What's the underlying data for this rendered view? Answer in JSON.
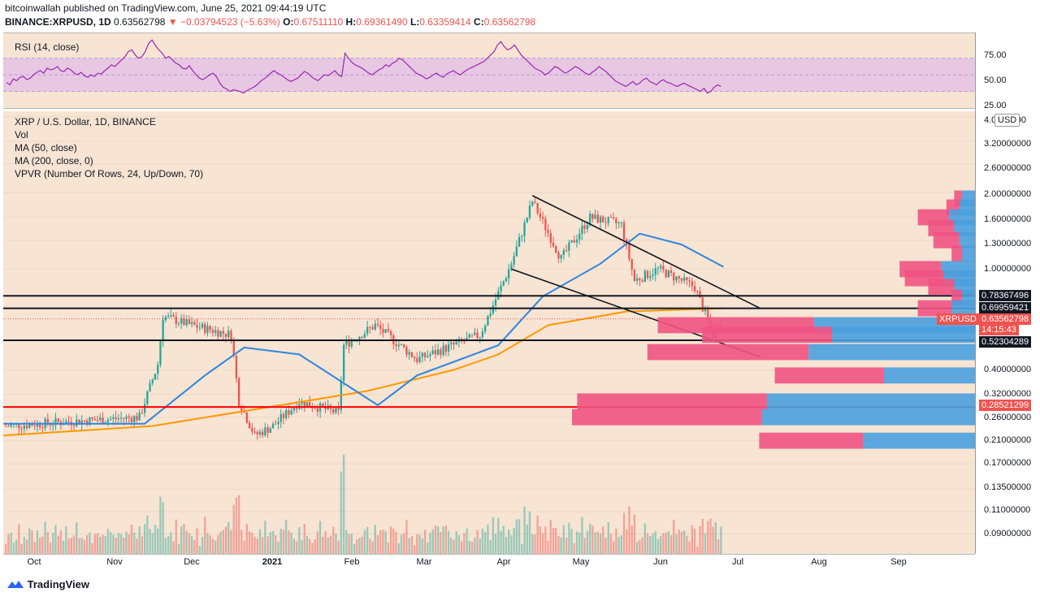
{
  "header": {
    "publisher": "bitcoinwallah published on TradingView.com, June 25, 2021 09:44:19 UTC",
    "symbol": "BINANCE:XRPUSD, 1D",
    "last": "0.63562798",
    "arrow": "▼",
    "change": "−0.03794523 (−5.63%)",
    "o_label": "O:",
    "o": "0.67511110",
    "h_label": "H:",
    "h": "0.69361490",
    "l_label": "L:",
    "l": "0.63359414",
    "c_label": "C:",
    "c": "0.63562798"
  },
  "rsi": {
    "label": "RSI (14, close)",
    "ticks": [
      "75.00",
      "50.00",
      "25.00"
    ],
    "values": [
      41,
      38,
      45,
      43,
      47,
      48,
      44,
      46,
      50,
      53,
      55,
      52,
      58,
      56,
      57,
      60,
      55,
      54,
      58,
      56,
      52,
      50,
      53,
      49,
      47,
      50,
      48,
      52,
      51,
      55,
      58,
      62,
      60,
      64,
      68,
      72,
      78,
      80,
      74,
      70,
      72,
      78,
      88,
      92,
      85,
      80,
      76,
      70,
      72,
      68,
      64,
      62,
      58,
      57,
      61,
      55,
      50,
      46,
      44,
      47,
      50,
      52,
      48,
      40,
      35,
      33,
      30,
      32,
      31,
      30,
      28,
      31,
      33,
      35,
      38,
      42,
      45,
      48,
      52,
      55,
      52,
      50,
      47,
      44,
      42,
      44,
      46,
      50,
      54,
      52,
      48,
      45,
      43,
      47,
      50,
      49,
      52,
      55,
      50,
      48,
      76,
      70,
      65,
      62,
      60,
      58,
      55,
      52,
      50,
      53,
      56,
      58,
      62,
      60,
      64,
      66,
      70,
      68,
      64,
      60,
      56,
      52,
      50,
      48,
      45,
      47,
      50,
      52,
      49,
      47,
      51,
      53,
      55,
      52,
      50,
      53,
      56,
      58,
      60,
      62,
      64,
      66,
      70,
      74,
      78,
      86,
      90,
      84,
      80,
      82,
      86,
      80,
      74,
      70,
      66,
      62,
      58,
      56,
      54,
      50,
      52,
      56,
      60,
      58,
      55,
      52,
      54,
      57,
      60,
      58,
      55,
      52,
      50,
      53,
      56,
      60,
      57,
      54,
      50,
      46,
      42,
      40,
      38,
      36,
      39,
      42,
      38,
      40,
      44,
      46,
      42,
      40,
      38,
      42,
      44,
      41,
      40,
      38,
      36,
      38,
      40,
      38,
      36,
      34,
      32,
      30,
      34,
      28,
      30,
      35,
      38,
      36
    ],
    "zones": {
      "upper": 70,
      "mid": 50,
      "lower": 30
    }
  },
  "main": {
    "legend": [
      "XRP / U.S. Dollar, 1D, BINANCE",
      "Vol",
      "MA (50, close)",
      "MA (200, close, 0)",
      "VPVR (Number Of Rows, 24, Up/Down, 70)"
    ],
    "ticks": [
      "4.0000000",
      "3.20000000",
      "2.60000000",
      "2.00000000",
      "1.60000000",
      "1.30000000",
      "1.00000000",
      "0.40000000",
      "0.32000000",
      "0.26000000",
      "0.21000000",
      "0.17000000",
      "0.13500000",
      "0.11000000",
      "0.09000000"
    ],
    "currency": "USD",
    "price_labels": [
      {
        "text": "0.78367496",
        "bg": "#131722"
      },
      {
        "text": "0.69959421",
        "bg": "#131722"
      },
      {
        "text": "XRPUSD",
        "bg": "#ef5350"
      },
      {
        "text": "0.63562798",
        "bg": "#ef5350"
      },
      {
        "text": "14:15:43",
        "bg": "#ef5350"
      },
      {
        "text": "0.52304289",
        "bg": "#131722"
      },
      {
        "text": "0.28521299",
        "bg": "#ef5350"
      }
    ],
    "x_ticks": [
      "Oct",
      "Nov",
      "Dec",
      "2021",
      "Feb",
      "Mar",
      "Apr",
      "May",
      "Jun",
      "Jul",
      "Aug",
      "Sep"
    ]
  },
  "chart_data": {
    "type": "candlestick",
    "title": "XRP / U.S. Dollar, 1D, BINANCE",
    "yscale": "log",
    "ylim": [
      0.075,
      4.2
    ],
    "x_range": [
      "2020-09-24",
      "2021-09-30"
    ],
    "anchors": [
      {
        "date": "2020-09-25",
        "close": 0.24
      },
      {
        "date": "2020-10-20",
        "close": 0.25
      },
      {
        "date": "2020-11-15",
        "close": 0.26
      },
      {
        "date": "2020-11-22",
        "close": 0.42
      },
      {
        "date": "2020-11-24",
        "close": 0.65
      },
      {
        "date": "2020-12-05",
        "close": 0.6
      },
      {
        "date": "2020-12-20",
        "close": 0.55
      },
      {
        "date": "2020-12-23",
        "close": 0.3
      },
      {
        "date": "2020-12-29",
        "close": 0.22
      },
      {
        "date": "2021-01-05",
        "close": 0.24
      },
      {
        "date": "2021-01-15",
        "close": 0.3
      },
      {
        "date": "2021-01-30",
        "close": 0.27
      },
      {
        "date": "2021-02-01",
        "close": 0.5
      },
      {
        "date": "2021-02-13",
        "close": 0.6
      },
      {
        "date": "2021-03-01",
        "close": 0.44
      },
      {
        "date": "2021-03-25",
        "close": 0.55
      },
      {
        "date": "2021-04-06",
        "close": 1.05
      },
      {
        "date": "2021-04-14",
        "close": 1.85
      },
      {
        "date": "2021-04-25",
        "close": 1.1
      },
      {
        "date": "2021-05-06",
        "close": 1.6
      },
      {
        "date": "2021-05-18",
        "close": 1.5
      },
      {
        "date": "2021-05-23",
        "close": 0.9
      },
      {
        "date": "2021-06-01",
        "close": 1.0
      },
      {
        "date": "2021-06-15",
        "close": 0.85
      },
      {
        "date": "2021-06-22",
        "close": 0.55
      },
      {
        "date": "2021-06-25",
        "close": 0.636
      }
    ],
    "ma50_name": "MA (50, close)",
    "ma200_name": "MA (200, close, 0)",
    "ma50": [
      {
        "date": "2020-09-24",
        "value": 0.245
      },
      {
        "date": "2020-11-17",
        "value": 0.245
      },
      {
        "date": "2020-12-10",
        "value": 0.38
      },
      {
        "date": "2020-12-25",
        "value": 0.49
      },
      {
        "date": "2021-01-15",
        "value": 0.46
      },
      {
        "date": "2021-02-14",
        "value": 0.29
      },
      {
        "date": "2021-03-01",
        "value": 0.38
      },
      {
        "date": "2021-04-01",
        "value": 0.5
      },
      {
        "date": "2021-04-18",
        "value": 0.78
      },
      {
        "date": "2021-05-10",
        "value": 1.05
      },
      {
        "date": "2021-05-25",
        "value": 1.38
      },
      {
        "date": "2021-06-10",
        "value": 1.25
      },
      {
        "date": "2021-06-26",
        "value": 1.02
      }
    ],
    "ma200": [
      {
        "date": "2020-09-24",
        "value": 0.22
      },
      {
        "date": "2020-11-20",
        "value": 0.24
      },
      {
        "date": "2020-12-30",
        "value": 0.28
      },
      {
        "date": "2021-02-10",
        "value": 0.33
      },
      {
        "date": "2021-03-15",
        "value": 0.4
      },
      {
        "date": "2021-04-01",
        "value": 0.46
      },
      {
        "date": "2021-04-20",
        "value": 0.6
      },
      {
        "date": "2021-05-20",
        "value": 0.68
      },
      {
        "date": "2021-06-26",
        "value": 0.7
      }
    ],
    "horizontal_levels": [
      {
        "value": 0.78367496,
        "color": "#131722",
        "name": "resistance-1"
      },
      {
        "value": 0.69959421,
        "color": "#131722",
        "name": "resistance-2"
      },
      {
        "value": 0.52304289,
        "color": "#131722",
        "name": "support-1"
      },
      {
        "value": 0.28521299,
        "color": "#ff0000",
        "name": "support-2"
      }
    ],
    "trendlines": [
      {
        "name": "channel-upper",
        "from": {
          "date": "2021-04-14",
          "value": 1.95
        },
        "to": {
          "date": "2021-07-10",
          "value": 0.7
        }
      },
      {
        "name": "channel-lower",
        "from": {
          "date": "2021-04-06",
          "value": 1.0
        },
        "to": {
          "date": "2021-07-10",
          "value": 0.45
        }
      }
    ],
    "vpvr": [
      {
        "price": 1.9,
        "up": 0.5,
        "down": 0.3
      },
      {
        "price": 1.75,
        "up": 0.6,
        "down": 0.5
      },
      {
        "price": 1.6,
        "up": 1.0,
        "down": 1.2
      },
      {
        "price": 1.45,
        "up": 0.8,
        "down": 1.0
      },
      {
        "price": 1.3,
        "up": 0.6,
        "down": 1.0
      },
      {
        "price": 1.15,
        "up": 0.5,
        "down": 0.4
      },
      {
        "price": 1.0,
        "up": 1.3,
        "down": 1.6
      },
      {
        "price": 0.92,
        "up": 1.2,
        "down": 1.5
      },
      {
        "price": 0.85,
        "up": 0.8,
        "down": 1.0
      },
      {
        "price": 0.77,
        "up": 0.5,
        "down": 0.4
      },
      {
        "price": 0.7,
        "up": 0.9,
        "down": 1.3
      },
      {
        "price": 0.6,
        "up": 6.2,
        "down": 6.0
      },
      {
        "price": 0.55,
        "up": 5.5,
        "down": 5.0
      },
      {
        "price": 0.47,
        "up": 6.4,
        "down": 6.2
      },
      {
        "price": 0.38,
        "up": 3.5,
        "down": 4.2
      },
      {
        "price": 0.3,
        "up": 8.0,
        "down": 7.3
      },
      {
        "price": 0.26,
        "up": 8.2,
        "down": 7.3
      },
      {
        "price": 0.21,
        "up": 4.3,
        "down": 4.0
      }
    ]
  },
  "colors": {
    "up": "#26a69a",
    "down": "#ef5350",
    "ma50": "#2e86de",
    "ma200": "#ff9800",
    "vpvr_up": "#4aa0de",
    "vpvr_down": "#ef5383",
    "rsi": "#9c27b0",
    "rsi_zone": "#e1bee7"
  },
  "footer": {
    "brand": "TradingView"
  }
}
